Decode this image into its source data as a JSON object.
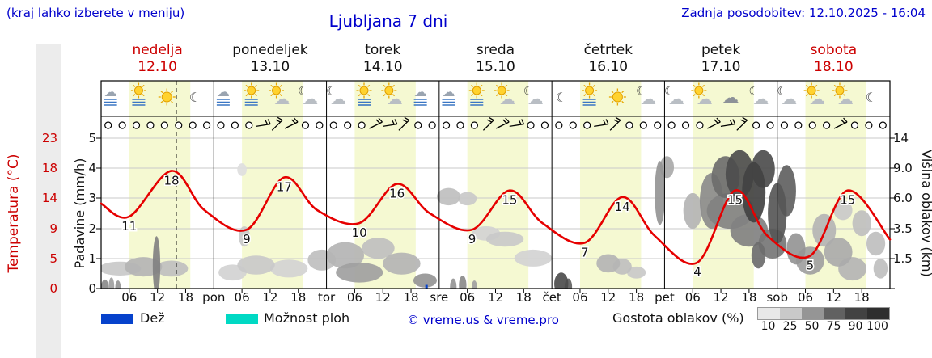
{
  "header": {
    "note": "(kraj lahko izberete v meniju)",
    "title": "Ljubljana 7 dni",
    "updated": "Zadnja posodobitev: 12.10.2025 - 16:04"
  },
  "colors": {
    "accent_blue": "#0000cc",
    "red": "#cc0000",
    "temp_curve": "#e60000",
    "day_band": "#f5f9d2",
    "grid": "#c9c9c9",
    "rain_blue": "#0642cc",
    "shower_cyan": "#00d9c4",
    "left_panel": "#ececec"
  },
  "days": [
    {
      "name": "nedelja",
      "date": "12.10",
      "highlight": true
    },
    {
      "name": "ponedeljek",
      "date": "13.10",
      "highlight": false
    },
    {
      "name": "torek",
      "date": "14.10",
      "highlight": false
    },
    {
      "name": "sreda",
      "date": "15.10",
      "highlight": false
    },
    {
      "name": "četrtek",
      "date": "16.10",
      "highlight": false
    },
    {
      "name": "petek",
      "date": "17.10",
      "highlight": false
    },
    {
      "name": "sobota",
      "date": "18.10",
      "highlight": true
    }
  ],
  "axes": {
    "temp": {
      "title": "Temperatura (°C)",
      "ticks": [
        "23",
        "18",
        "14",
        "9",
        "5",
        "0"
      ]
    },
    "precip": {
      "title": "Padavine (mm/h)",
      "ticks": [
        "5",
        "4",
        "3",
        "2",
        "1",
        "0"
      ]
    },
    "cloud_height": {
      "title": "Višina oblakov (km)",
      "ticks": [
        "14",
        "9.0",
        "6.0",
        "3.5",
        "1.5"
      ]
    },
    "x_hour_labels": [
      "06",
      "12",
      "18"
    ],
    "x_day_abbrevs": [
      "pon",
      "tor",
      "sre",
      "čet",
      "pet",
      "sob"
    ]
  },
  "legend": {
    "rain": "Dež",
    "showers": "Možnost ploh",
    "copyright": "© vreme.us & vreme.pro",
    "cloud_density": "Gostota oblakov (%)",
    "density_steps": [
      "10",
      "25",
      "50",
      "75",
      "90",
      "100"
    ],
    "density_colors": [
      "#e8e8e8",
      "#c9c9c9",
      "#959595",
      "#616161",
      "#424242",
      "#2e2e2e"
    ]
  },
  "chart_data": {
    "type": "line",
    "title": "Ljubljana 7 dni",
    "hours_total": 168,
    "daylight": [
      6,
      19
    ],
    "now_hour": 16,
    "temp_axis_range": [
      0,
      23
    ],
    "precip_axis_range_mm_h": [
      0,
      5
    ],
    "cloud_height_axis_km": [
      0,
      14
    ],
    "temperature_points": [
      [
        0,
        13
      ],
      [
        6,
        11
      ],
      [
        15,
        18
      ],
      [
        22,
        12
      ],
      [
        31,
        9
      ],
      [
        39,
        17
      ],
      [
        46,
        12
      ],
      [
        55,
        10
      ],
      [
        63,
        16
      ],
      [
        70,
        11.5
      ],
      [
        79,
        9
      ],
      [
        87,
        15
      ],
      [
        94,
        10
      ],
      [
        103,
        7
      ],
      [
        111,
        14
      ],
      [
        118,
        8
      ],
      [
        127,
        4
      ],
      [
        135,
        15
      ],
      [
        142,
        8
      ],
      [
        151,
        5
      ],
      [
        159,
        15
      ],
      [
        168,
        7.5
      ]
    ],
    "temperature_labels": [
      [
        6,
        11
      ],
      [
        15,
        18
      ],
      [
        31,
        9
      ],
      [
        39,
        17
      ],
      [
        55,
        10
      ],
      [
        63,
        16
      ],
      [
        79,
        9
      ],
      [
        87,
        15
      ],
      [
        103,
        7
      ],
      [
        111,
        14
      ],
      [
        127,
        4
      ],
      [
        135,
        15
      ],
      [
        151,
        5
      ],
      [
        159,
        15
      ]
    ],
    "daily_summary": [
      {
        "day": "nedelja",
        "date": "12.10",
        "tmin": 11,
        "tmax": 18
      },
      {
        "day": "ponedeljek",
        "date": "13.10",
        "tmin": 9,
        "tmax": 17
      },
      {
        "day": "torek",
        "date": "14.10",
        "tmin": 10,
        "tmax": 16
      },
      {
        "day": "sreda",
        "date": "15.10",
        "tmin": 9,
        "tmax": 15
      },
      {
        "day": "četrtek",
        "date": "16.10",
        "tmin": 7,
        "tmax": 14
      },
      {
        "day": "petek",
        "date": "17.10",
        "tmin": 4,
        "tmax": 15
      },
      {
        "day": "sobota",
        "date": "18.10",
        "tmin": 5,
        "tmax": 15
      }
    ],
    "cloud_blobs": [
      [
        0.8,
        0.15,
        0.8,
        0.3,
        55
      ],
      [
        2.2,
        0.2,
        0.6,
        0.35,
        45
      ],
      [
        3.6,
        0.15,
        0.6,
        0.25,
        50
      ],
      [
        4,
        1.0,
        4.5,
        0.35,
        25
      ],
      [
        9,
        1.1,
        4,
        0.5,
        35
      ],
      [
        11.8,
        1.5,
        0.8,
        1.5,
        60
      ],
      [
        15,
        1.0,
        3.5,
        0.4,
        30
      ],
      [
        28,
        0.8,
        3,
        0.4,
        20
      ],
      [
        30.5,
        3.0,
        1.2,
        0.7,
        25
      ],
      [
        30,
        9,
        1,
        0.8,
        15
      ],
      [
        33,
        1.2,
        4,
        0.5,
        25
      ],
      [
        40,
        1.0,
        4,
        0.45,
        20
      ],
      [
        47,
        1.5,
        3,
        0.6,
        30
      ],
      [
        52,
        1.8,
        4,
        0.8,
        35
      ],
      [
        55,
        0.8,
        5,
        0.5,
        45
      ],
      [
        59,
        2.2,
        3.5,
        0.7,
        30
      ],
      [
        64,
        1.3,
        4,
        0.6,
        35
      ],
      [
        69,
        0.4,
        2.5,
        0.35,
        50
      ],
      [
        74,
        6.2,
        2.5,
        0.8,
        30
      ],
      [
        78,
        6.0,
        2,
        0.6,
        25
      ],
      [
        75,
        0.2,
        0.7,
        0.3,
        50
      ],
      [
        77,
        0.25,
        0.8,
        0.4,
        55
      ],
      [
        79.5,
        0.15,
        0.6,
        0.25,
        45
      ],
      [
        82,
        3.2,
        3,
        0.5,
        20
      ],
      [
        86,
        2.8,
        4,
        0.5,
        25
      ],
      [
        92,
        1.6,
        4,
        0.5,
        20
      ],
      [
        98,
        0.3,
        1.5,
        0.5,
        85
      ],
      [
        99.5,
        0.2,
        0.8,
        0.3,
        75
      ],
      [
        108,
        1.3,
        2.5,
        0.5,
        35
      ],
      [
        111,
        1.1,
        2,
        0.4,
        30
      ],
      [
        114,
        0.8,
        2,
        0.3,
        25
      ],
      [
        119,
        7,
        1.1,
        3.2,
        50
      ],
      [
        120.5,
        9.5,
        1.5,
        1.5,
        40
      ],
      [
        126,
        5,
        2,
        1.5,
        35
      ],
      [
        130,
        6,
        2.5,
        2.5,
        55
      ],
      [
        133,
        8.5,
        3,
        2.5,
        70
      ],
      [
        134,
        5,
        5,
        1.5,
        60
      ],
      [
        136,
        9,
        3,
        3,
        85
      ],
      [
        138,
        3.5,
        4,
        1.2,
        60
      ],
      [
        139,
        7,
        2.5,
        3,
        90
      ],
      [
        140,
        1.8,
        1.5,
        0.8,
        70
      ],
      [
        141,
        9.5,
        2.5,
        2.5,
        85
      ],
      [
        143,
        2.5,
        3,
        1,
        65
      ],
      [
        144,
        5,
        2,
        2.5,
        80
      ],
      [
        146,
        7,
        2,
        2.5,
        75
      ],
      [
        148,
        2.2,
        2,
        1,
        50
      ],
      [
        151,
        1.5,
        3,
        0.8,
        45
      ],
      [
        154,
        3.5,
        2.5,
        1.2,
        35
      ],
      [
        157,
        2,
        3,
        0.9,
        40
      ],
      [
        158,
        5,
        2,
        0.8,
        25
      ],
      [
        160,
        1,
        3,
        0.6,
        35
      ],
      [
        162,
        4,
        2,
        1,
        30
      ],
      [
        165,
        2.5,
        2,
        0.8,
        30
      ],
      [
        166,
        1,
        1.5,
        0.5,
        30
      ]
    ],
    "rain_bars": [
      [
        69.3,
        0.12
      ]
    ],
    "wind_symbols": "ooooooooooobbbooooobbbooooobbbooooobboooooobbboooooobooo",
    "icons": [
      [
        "stratus",
        "sun-fog",
        "sun",
        "moon"
      ],
      [
        "stratus",
        "sun-fog",
        "sun-cloud",
        "moon-cloud"
      ],
      [
        "moon-cloud",
        "sun-fog",
        "sun-cloud",
        "stratus"
      ],
      [
        "stratus",
        "sun-fog",
        "sun-cloud",
        "moon-cloud"
      ],
      [
        "moon",
        "sun-fog",
        "sun",
        "moon-cloud"
      ],
      [
        "moon-cloud",
        "sun-cloud",
        "cloud",
        "moon-cloud"
      ],
      [
        "moon-cloud",
        "sun-cloud",
        "sun-cloud",
        "moon"
      ]
    ]
  }
}
